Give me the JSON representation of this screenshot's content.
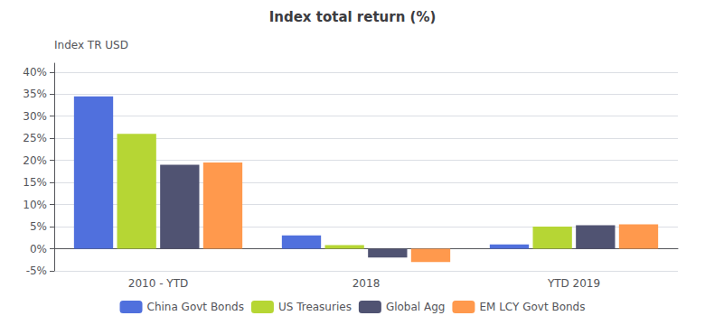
{
  "chart_data": {
    "type": "bar",
    "title": "Index total return (%)",
    "ylabel": "Index TR USD",
    "categories": [
      "2010 - YTD",
      "2018",
      "YTD 2019"
    ],
    "series": [
      {
        "name": "China Govt Bonds",
        "values": [
          34.5,
          3.0,
          1.0
        ]
      },
      {
        "name": "US Treasuries",
        "values": [
          26.0,
          0.8,
          5.0
        ]
      },
      {
        "name": "Global Agg",
        "values": [
          19.0,
          -2.0,
          5.3
        ]
      },
      {
        "name": "EM LCY Govt Bonds",
        "values": [
          19.5,
          -3.0,
          5.5
        ]
      }
    ],
    "ylim": [
      -5,
      42
    ],
    "yticks": [
      {
        "value": -5,
        "label": "-5%"
      },
      {
        "value": 0,
        "label": "0%"
      },
      {
        "value": 5,
        "label": "5%"
      },
      {
        "value": 10,
        "label": "10%"
      },
      {
        "value": 15,
        "label": "15%"
      },
      {
        "value": 20,
        "label": "20%"
      },
      {
        "value": 25,
        "label": "25%"
      },
      {
        "value": 30,
        "label": "30%"
      },
      {
        "value": 35,
        "label": "35%"
      },
      {
        "value": 40,
        "label": "40%"
      }
    ],
    "grid": true,
    "legend": "bottom"
  }
}
